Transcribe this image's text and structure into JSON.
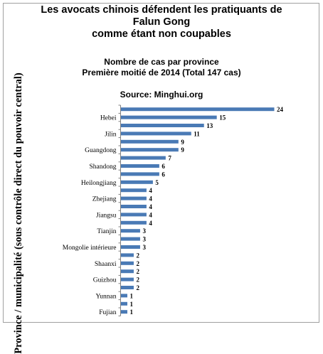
{
  "chart_data": {
    "type": "bar",
    "orientation": "horizontal",
    "title_lines": [
      "Les avocats chinois défendent les pratiquants de",
      "Falun Gong",
      "comme étant non coupables"
    ],
    "subtitle_lines": [
      "Nombre de cas par province",
      "Première moitié de 2014 (Total 147 cas)"
    ],
    "source": "Source: Minghui.org",
    "ylabel": "Province / municipalité (sous contrôle direct du pouvoir central)",
    "xlim": [
      0,
      24
    ],
    "bar_color": "#4a7ab5",
    "categories": [
      "",
      "Hebei",
      "",
      "Jilin",
      "",
      "Guangdong",
      "",
      "Shandong",
      "",
      "Heilongjiang",
      "",
      "Zhejiang",
      "",
      "Jiangsu",
      "",
      "Tianjin",
      "",
      "Mongolie intérieure",
      "",
      "Shaanxi",
      "",
      "Guizhou",
      "",
      "Yunnan",
      "",
      "Fujian"
    ],
    "values": [
      24,
      15,
      13,
      11,
      9,
      9,
      7,
      6,
      6,
      5,
      4,
      4,
      4,
      4,
      4,
      3,
      3,
      3,
      2,
      2,
      2,
      2,
      2,
      1,
      1,
      1
    ]
  }
}
